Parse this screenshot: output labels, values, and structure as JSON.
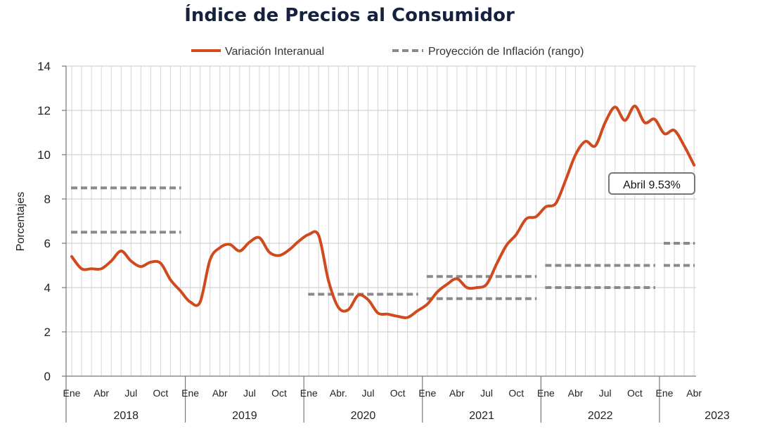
{
  "chart_data": {
    "type": "line",
    "title": "Índice de Precios al Consumidor",
    "ylabel": "Porcentajes",
    "ylim": [
      0,
      14
    ],
    "yticks": [
      0,
      2,
      4,
      6,
      8,
      10,
      12,
      14
    ],
    "grid": true,
    "legend_position": "top",
    "x_tick_labels": [
      "Ene",
      "Abr",
      "Jul",
      "Oct",
      "Ene",
      "Abr",
      "Jul",
      "Oct",
      "Ene",
      "Abr.",
      "Jul",
      "Oct",
      "Ene",
      "Abr",
      "Jul",
      "Oct",
      "Ene",
      "Abr",
      "Jul",
      "Oct",
      "Ene",
      "Abr"
    ],
    "x_tick_months": [
      "2018-01",
      "2018-04",
      "2018-07",
      "2018-10",
      "2019-01",
      "2019-04",
      "2019-07",
      "2019-10",
      "2020-01",
      "2020-04",
      "2020-07",
      "2020-10",
      "2021-01",
      "2021-04",
      "2021-07",
      "2021-10",
      "2022-01",
      "2022-04",
      "2022-07",
      "2022-10",
      "2023-01",
      "2023-04"
    ],
    "years": [
      "2018",
      "2019",
      "2020",
      "2021",
      "2022",
      "2023"
    ],
    "series": [
      {
        "name": "Variación Interanual",
        "color": "#d04a1e",
        "style": "solid",
        "x": [
          "2018-01",
          "2018-02",
          "2018-03",
          "2018-04",
          "2018-05",
          "2018-06",
          "2018-07",
          "2018-08",
          "2018-09",
          "2018-10",
          "2018-11",
          "2018-12",
          "2019-01",
          "2019-02",
          "2019-03",
          "2019-04",
          "2019-05",
          "2019-06",
          "2019-07",
          "2019-08",
          "2019-09",
          "2019-10",
          "2019-11",
          "2019-12",
          "2020-01",
          "2020-02",
          "2020-03",
          "2020-04",
          "2020-05",
          "2020-06",
          "2020-07",
          "2020-08",
          "2020-09",
          "2020-10",
          "2020-11",
          "2020-12",
          "2021-01",
          "2021-02",
          "2021-03",
          "2021-04",
          "2021-05",
          "2021-06",
          "2021-07",
          "2021-08",
          "2021-09",
          "2021-10",
          "2021-11",
          "2021-12",
          "2022-01",
          "2022-02",
          "2022-03",
          "2022-04",
          "2022-05",
          "2022-06",
          "2022-07",
          "2022-08",
          "2022-09",
          "2022-10",
          "2022-11",
          "2022-12",
          "2023-01",
          "2023-02",
          "2023-03",
          "2023-04"
        ],
        "values": [
          5.4,
          4.85,
          4.85,
          4.85,
          5.2,
          5.65,
          5.2,
          4.95,
          5.15,
          5.1,
          4.35,
          3.85,
          3.35,
          3.35,
          5.25,
          5.8,
          5.95,
          5.65,
          6.05,
          6.25,
          5.6,
          5.45,
          5.7,
          6.1,
          6.4,
          6.35,
          4.3,
          3.1,
          3.0,
          3.65,
          3.45,
          2.85,
          2.8,
          2.7,
          2.65,
          2.95,
          3.25,
          3.8,
          4.15,
          4.4,
          4.0,
          4.0,
          4.15,
          5.05,
          5.9,
          6.4,
          7.1,
          7.2,
          7.65,
          7.8,
          8.85,
          10.0,
          10.6,
          10.4,
          11.45,
          12.15,
          11.55,
          12.2,
          11.45,
          11.6,
          10.95,
          11.1,
          10.4,
          9.53
        ]
      }
    ],
    "projection_ranges": [
      {
        "name": "Proyección de Inflación (rango)",
        "color": "#8a8a8a",
        "style": "dashed",
        "from": "2018-01",
        "to": "2018-12",
        "low": 6.5,
        "high": 8.5
      },
      {
        "from": "2020-01",
        "to": "2020-12",
        "low": 3.7,
        "high": 3.7
      },
      {
        "from": "2021-01",
        "to": "2021-12",
        "low": 3.5,
        "high": 4.5
      },
      {
        "from": "2022-01",
        "to": "2022-12",
        "low": 4.0,
        "high": 5.0
      },
      {
        "from": "2023-01",
        "to": "2023-04",
        "low": 5.0,
        "high": 6.0
      }
    ],
    "legend": [
      {
        "label": "Variación Interanual",
        "color": "#d04a1e",
        "style": "solid"
      },
      {
        "label": "Proyección de Inflación (rango)",
        "color": "#8a8a8a",
        "style": "dashed"
      }
    ],
    "annotation": {
      "text": "Abril 9.53%",
      "x": "2023-04",
      "y": 9.53
    }
  }
}
